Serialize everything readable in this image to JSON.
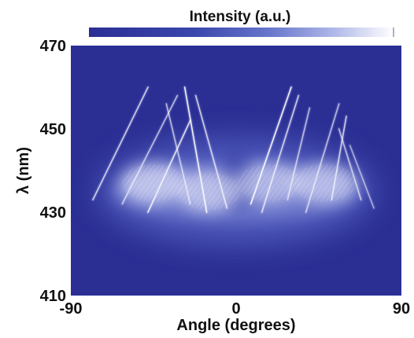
{
  "chart_data": {
    "type": "heatmap",
    "title": "",
    "colorbar_label": "Intensity (a.u.)",
    "xlabel": "Angle (degrees)",
    "ylabel": "λ (nm)",
    "xlim": [
      -90,
      90
    ],
    "ylim": [
      410,
      470
    ],
    "x_ticks": [
      -90,
      0,
      90
    ],
    "y_ticks": [
      410,
      430,
      450,
      470
    ],
    "colormap": [
      "#2b2f94",
      "#3640a8",
      "#5563c4",
      "#8e98dc",
      "#c9cdf0",
      "#ffffff"
    ],
    "background_color": "#2b2f94",
    "glow_region": {
      "center_wavelength_nm": 435,
      "wavelength_spread_nm": 8,
      "angle_range": [
        -75,
        75
      ],
      "hot_lobes": [
        {
          "angle": -45,
          "wavelength_nm": 437,
          "intensity": 0.85
        },
        {
          "angle": -15,
          "wavelength_nm": 435,
          "intensity": 0.8
        },
        {
          "angle": 18,
          "wavelength_nm": 437,
          "intensity": 0.7
        },
        {
          "angle": 48,
          "wavelength_nm": 437,
          "intensity": 0.75
        }
      ]
    },
    "bright_lines": [
      {
        "from": [
          -78,
          433
        ],
        "to": [
          -48,
          460
        ],
        "intensity": 0.7
      },
      {
        "from": [
          -62,
          432
        ],
        "to": [
          -32,
          458
        ],
        "intensity": 0.6
      },
      {
        "from": [
          -48,
          430
        ],
        "to": [
          -25,
          452
        ],
        "intensity": 0.8
      },
      {
        "from": [
          -25,
          432
        ],
        "to": [
          -38,
          456
        ],
        "intensity": 0.6
      },
      {
        "from": [
          -16,
          430
        ],
        "to": [
          -28,
          460
        ],
        "intensity": 0.9
      },
      {
        "from": [
          -5,
          431
        ],
        "to": [
          -22,
          458
        ],
        "intensity": 0.7
      },
      {
        "from": [
          8,
          432
        ],
        "to": [
          30,
          460
        ],
        "intensity": 0.9
      },
      {
        "from": [
          14,
          430
        ],
        "to": [
          34,
          458
        ],
        "intensity": 0.7
      },
      {
        "from": [
          28,
          433
        ],
        "to": [
          40,
          455
        ],
        "intensity": 0.6
      },
      {
        "from": [
          38,
          430
        ],
        "to": [
          56,
          456
        ],
        "intensity": 0.6
      },
      {
        "from": [
          52,
          433
        ],
        "to": [
          60,
          453
        ],
        "intensity": 0.7
      },
      {
        "from": [
          68,
          433
        ],
        "to": [
          56,
          450
        ],
        "intensity": 0.6
      },
      {
        "from": [
          75,
          431
        ],
        "to": [
          62,
          446
        ],
        "intensity": 0.5
      }
    ]
  }
}
